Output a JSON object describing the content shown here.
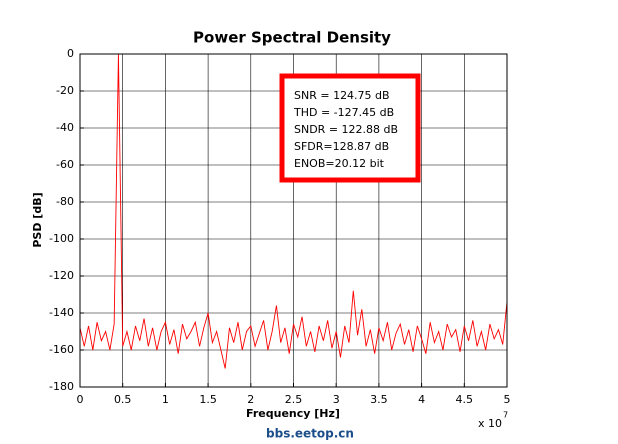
{
  "chart_data": {
    "type": "line",
    "title": "Power Spectral Density",
    "x_label": "Frequency [Hz]",
    "y_label": "PSD [dB]",
    "x_scale_label": "x 10",
    "x_scale_exponent": "7",
    "xlim": [
      0,
      5
    ],
    "xticks": [
      0,
      0.5,
      1,
      1.5,
      2,
      2.5,
      3,
      3.5,
      4,
      4.5,
      5
    ],
    "ylim": [
      -180,
      0
    ],
    "yticks": [
      -180,
      -160,
      -140,
      -120,
      -100,
      -80,
      -60,
      -40,
      -20,
      0
    ],
    "grid": true,
    "series": [
      {
        "color": "#ff0000",
        "x": [
          0,
          0.05,
          0.1,
          0.15,
          0.2,
          0.25,
          0.3,
          0.35,
          0.4,
          0.45,
          0.5,
          0.55,
          0.6,
          0.65,
          0.7,
          0.75,
          0.8,
          0.85,
          0.9,
          0.95,
          1,
          1.05,
          1.1,
          1.15,
          1.2,
          1.25,
          1.3,
          1.35,
          1.4,
          1.45,
          1.5,
          1.55,
          1.6,
          1.65,
          1.7,
          1.75,
          1.8,
          1.85,
          1.9,
          1.95,
          2,
          2.05,
          2.1,
          2.15,
          2.2,
          2.25,
          2.3,
          2.35,
          2.4,
          2.45,
          2.5,
          2.55,
          2.6,
          2.65,
          2.7,
          2.75,
          2.8,
          2.85,
          2.9,
          2.95,
          3,
          3.05,
          3.1,
          3.15,
          3.2,
          3.25,
          3.3,
          3.35,
          3.4,
          3.45,
          3.5,
          3.55,
          3.6,
          3.65,
          3.7,
          3.75,
          3.8,
          3.85,
          3.9,
          3.95,
          4,
          4.05,
          4.1,
          4.15,
          4.2,
          4.25,
          4.3,
          4.35,
          4.4,
          4.45,
          4.5,
          4.55,
          4.6,
          4.65,
          4.7,
          4.75,
          4.8,
          4.85,
          4.9,
          4.95,
          5
        ],
        "values": [
          -148,
          -158,
          -147,
          -160,
          -145,
          -155,
          -150,
          -160,
          -146,
          0,
          -158,
          -150,
          -160,
          -147,
          -155,
          -143,
          -158,
          -148,
          -160,
          -150,
          -145,
          -157,
          -149,
          -162,
          -146,
          -154,
          -150,
          -145,
          -158,
          -148,
          -140,
          -156,
          -150,
          -160,
          -170,
          -148,
          -156,
          -145,
          -160,
          -150,
          -147,
          -158,
          -151,
          -144,
          -160,
          -150,
          -136,
          -156,
          -148,
          -162,
          -146,
          -153,
          -142,
          -158,
          -150,
          -161,
          -147,
          -155,
          -144,
          -159,
          -150,
          -164,
          -147,
          -156,
          -128,
          -152,
          -138,
          -158,
          -149,
          -162,
          -148,
          -155,
          -145,
          -160,
          -151,
          -146,
          -157,
          -149,
          -161,
          -147,
          -154,
          -162,
          -145,
          -156,
          -150,
          -160,
          -146,
          -153,
          -149,
          -161,
          -147,
          -155,
          -144,
          -158,
          -150,
          -160,
          -146,
          -154,
          -149,
          -157,
          -134
        ]
      }
    ],
    "annotation_lines": [
      "SNR = 124.75 dB",
      "THD = -127.45 dB",
      "SNDR = 122.88 dB",
      "SFDR=128.87 dB",
      "ENOB=20.12 bit"
    ],
    "annotation_color": "#ff0000",
    "watermark": "bbs.eetop.cn"
  }
}
